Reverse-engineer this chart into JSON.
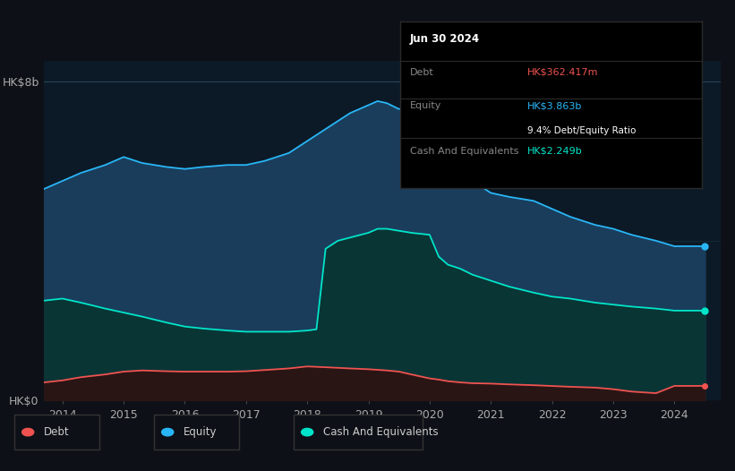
{
  "background_color": "#0d1117",
  "plot_bg_color": "#0c1a27",
  "ylabel_top": "HK$8b",
  "ylabel_bottom": "HK$0",
  "equity_color": "#29b6f6",
  "equity_fill": "#1a3d5c",
  "cash_color": "#00e5c9",
  "cash_fill": "#0a3535",
  "debt_color": "#ef5350",
  "debt_fill": "#2a1515",
  "grid_color": "#1a3040",
  "equity_data_x": [
    2013.7,
    2014.0,
    2014.3,
    2014.7,
    2015.0,
    2015.3,
    2015.7,
    2016.0,
    2016.3,
    2016.7,
    2017.0,
    2017.3,
    2017.7,
    2018.0,
    2018.3,
    2018.5,
    2018.7,
    2019.0,
    2019.15,
    2019.3,
    2019.5,
    2019.7,
    2020.0,
    2020.15,
    2020.3,
    2020.5,
    2020.7,
    2021.0,
    2021.3,
    2021.7,
    2022.0,
    2022.3,
    2022.7,
    2023.0,
    2023.3,
    2023.7,
    2024.0,
    2024.5
  ],
  "equity_data_y": [
    5.3,
    5.5,
    5.7,
    5.9,
    6.1,
    5.95,
    5.85,
    5.8,
    5.85,
    5.9,
    5.9,
    6.0,
    6.2,
    6.5,
    6.8,
    7.0,
    7.2,
    7.4,
    7.5,
    7.45,
    7.3,
    7.4,
    7.5,
    7.4,
    7.2,
    5.8,
    5.5,
    5.2,
    5.1,
    5.0,
    4.8,
    4.6,
    4.4,
    4.3,
    4.15,
    4.0,
    3.863,
    3.863
  ],
  "cash_data_x": [
    2013.7,
    2014.0,
    2014.3,
    2014.7,
    2015.0,
    2015.3,
    2015.7,
    2016.0,
    2016.3,
    2016.7,
    2017.0,
    2017.3,
    2017.7,
    2018.0,
    2018.15,
    2018.3,
    2018.5,
    2019.0,
    2019.15,
    2019.3,
    2019.5,
    2019.7,
    2020.0,
    2020.15,
    2020.3,
    2020.5,
    2020.7,
    2021.0,
    2021.3,
    2021.7,
    2022.0,
    2022.3,
    2022.7,
    2023.0,
    2023.3,
    2023.7,
    2024.0,
    2024.5
  ],
  "cash_data_y": [
    2.5,
    2.55,
    2.45,
    2.3,
    2.2,
    2.1,
    1.95,
    1.85,
    1.8,
    1.75,
    1.72,
    1.72,
    1.72,
    1.75,
    1.78,
    3.8,
    4.0,
    4.2,
    4.3,
    4.3,
    4.25,
    4.2,
    4.15,
    3.6,
    3.4,
    3.3,
    3.15,
    3.0,
    2.85,
    2.7,
    2.6,
    2.55,
    2.45,
    2.4,
    2.35,
    2.3,
    2.249,
    2.249
  ],
  "debt_data_x": [
    2013.7,
    2014.0,
    2014.3,
    2014.7,
    2015.0,
    2015.3,
    2015.7,
    2016.0,
    2016.3,
    2016.7,
    2017.0,
    2017.3,
    2017.7,
    2018.0,
    2018.3,
    2018.7,
    2019.0,
    2019.3,
    2019.5,
    2019.7,
    2020.0,
    2020.15,
    2020.3,
    2020.5,
    2020.7,
    2021.0,
    2021.3,
    2021.7,
    2022.0,
    2022.3,
    2022.7,
    2023.0,
    2023.3,
    2023.7,
    2024.0,
    2024.5
  ],
  "debt_data_y": [
    0.45,
    0.5,
    0.58,
    0.65,
    0.72,
    0.75,
    0.73,
    0.72,
    0.72,
    0.72,
    0.73,
    0.76,
    0.8,
    0.85,
    0.83,
    0.8,
    0.78,
    0.75,
    0.72,
    0.65,
    0.55,
    0.52,
    0.48,
    0.45,
    0.43,
    0.42,
    0.4,
    0.38,
    0.36,
    0.34,
    0.32,
    0.28,
    0.22,
    0.18,
    0.362,
    0.362
  ],
  "tooltip_date": "Jun 30 2024",
  "tooltip_debt_label": "Debt",
  "tooltip_debt_value": "HK$362.417m",
  "tooltip_equity_label": "Equity",
  "tooltip_equity_value": "HK$3.863b",
  "tooltip_ratio": "9.4% Debt/Equity Ratio",
  "tooltip_cash_label": "Cash And Equivalents",
  "tooltip_cash_value": "HK$2.249b",
  "legend_debt": "Debt",
  "legend_equity": "Equity",
  "legend_cash": "Cash And Equivalents"
}
